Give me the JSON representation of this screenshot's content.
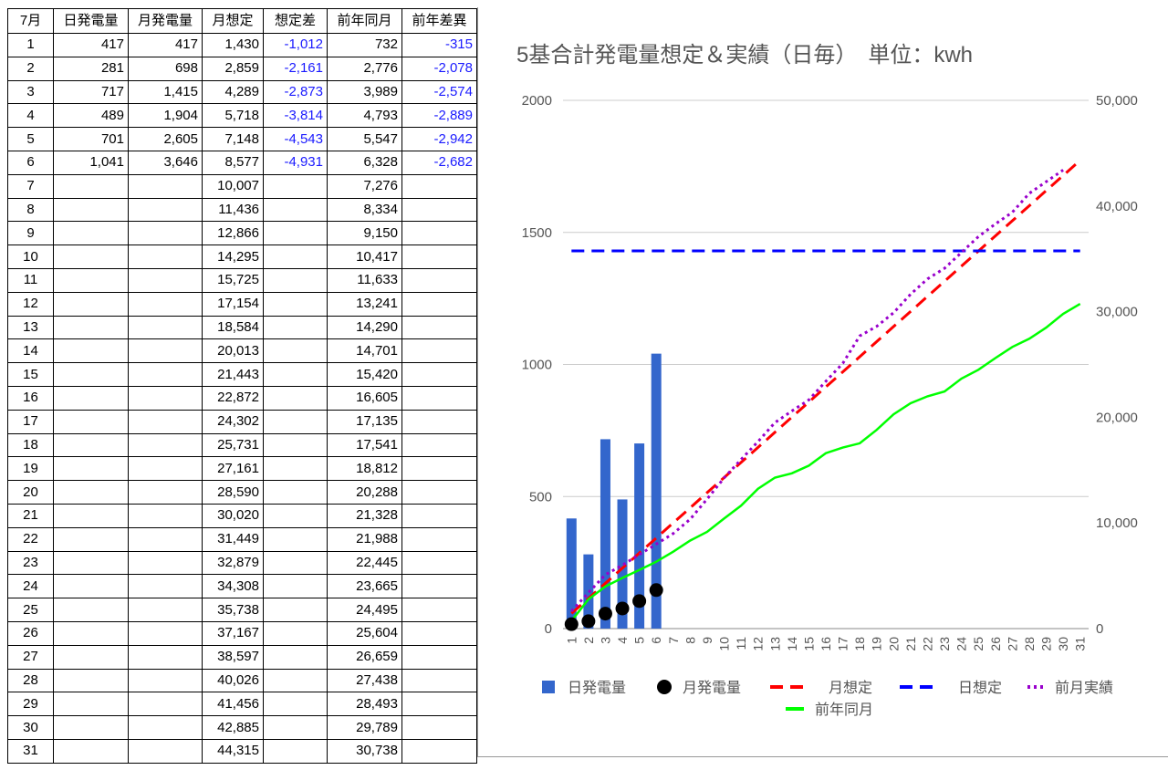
{
  "table": {
    "header": [
      "7月",
      "日発電量",
      "月発電量",
      "月想定",
      "想定差",
      "前年同月",
      "前年差異"
    ],
    "rows": [
      [
        "1",
        "417",
        "417",
        "1,430",
        "-1,012",
        "732",
        "-315"
      ],
      [
        "2",
        "281",
        "698",
        "2,859",
        "-2,161",
        "2,776",
        "-2,078"
      ],
      [
        "3",
        "717",
        "1,415",
        "4,289",
        "-2,873",
        "3,989",
        "-2,574"
      ],
      [
        "4",
        "489",
        "1,904",
        "5,718",
        "-3,814",
        "4,793",
        "-2,889"
      ],
      [
        "5",
        "701",
        "2,605",
        "7,148",
        "-4,543",
        "5,547",
        "-2,942"
      ],
      [
        "6",
        "1,041",
        "3,646",
        "8,577",
        "-4,931",
        "6,328",
        "-2,682"
      ],
      [
        "7",
        null,
        null,
        "10,007",
        null,
        "7,276",
        null
      ],
      [
        "8",
        null,
        null,
        "11,436",
        null,
        "8,334",
        null
      ],
      [
        "9",
        null,
        null,
        "12,866",
        null,
        "9,150",
        null
      ],
      [
        "10",
        null,
        null,
        "14,295",
        null,
        "10,417",
        null
      ],
      [
        "11",
        null,
        null,
        "15,725",
        null,
        "11,633",
        null
      ],
      [
        "12",
        null,
        null,
        "17,154",
        null,
        "13,241",
        null
      ],
      [
        "13",
        null,
        null,
        "18,584",
        null,
        "14,290",
        null
      ],
      [
        "14",
        null,
        null,
        "20,013",
        null,
        "14,701",
        null
      ],
      [
        "15",
        null,
        null,
        "21,443",
        null,
        "15,420",
        null
      ],
      [
        "16",
        null,
        null,
        "22,872",
        null,
        "16,605",
        null
      ],
      [
        "17",
        null,
        null,
        "24,302",
        null,
        "17,135",
        null
      ],
      [
        "18",
        null,
        null,
        "25,731",
        null,
        "17,541",
        null
      ],
      [
        "19",
        null,
        null,
        "27,161",
        null,
        "18,812",
        null
      ],
      [
        "20",
        null,
        null,
        "28,590",
        null,
        "20,288",
        null
      ],
      [
        "21",
        null,
        null,
        "30,020",
        null,
        "21,328",
        null
      ],
      [
        "22",
        null,
        null,
        "31,449",
        null,
        "21,988",
        null
      ],
      [
        "23",
        null,
        null,
        "32,879",
        null,
        "22,445",
        null
      ],
      [
        "24",
        null,
        null,
        "34,308",
        null,
        "23,665",
        null
      ],
      [
        "25",
        null,
        null,
        "35,738",
        null,
        "24,495",
        null
      ],
      [
        "26",
        null,
        null,
        "37,167",
        null,
        "25,604",
        null
      ],
      [
        "27",
        null,
        null,
        "38,597",
        null,
        "26,659",
        null
      ],
      [
        "28",
        null,
        null,
        "40,026",
        null,
        "27,438",
        null
      ],
      [
        "29",
        null,
        null,
        "41,456",
        null,
        "28,493",
        null
      ],
      [
        "30",
        null,
        null,
        "42,885",
        null,
        "29,789",
        null
      ],
      [
        "31",
        null,
        null,
        "44,315",
        null,
        "30,738",
        null
      ]
    ]
  },
  "chart_data": {
    "type": "combo",
    "title": "5基合計発電量想定＆実績（日毎）　単位：kwh",
    "categories": [
      "1",
      "2",
      "3",
      "4",
      "5",
      "6",
      "7",
      "8",
      "9",
      "10",
      "11",
      "12",
      "13",
      "14",
      "15",
      "16",
      "17",
      "18",
      "19",
      "20",
      "21",
      "22",
      "23",
      "24",
      "25",
      "26",
      "27",
      "28",
      "29",
      "30",
      "31"
    ],
    "ylim": [
      0,
      2000
    ],
    "yticks": [
      0,
      500,
      1000,
      1500,
      2000
    ],
    "y2lim": [
      0,
      50000
    ],
    "y2ticks": [
      0,
      {
        "value": 10000,
        "label": "10,000"
      },
      {
        "value": 20000,
        "label": "20,000"
      },
      {
        "value": 30000,
        "label": "30,000"
      },
      {
        "value": 40000,
        "label": "40,000"
      },
      {
        "value": 50000,
        "label": "50,000"
      }
    ],
    "grid": true,
    "series": [
      {
        "name": "日発電量",
        "type": "bar",
        "color": "#3366cc",
        "values": [
          417,
          281,
          717,
          489,
          701,
          1041,
          null,
          null,
          null,
          null,
          null,
          null,
          null,
          null,
          null,
          null,
          null,
          null,
          null,
          null,
          null,
          null,
          null,
          null,
          null,
          null,
          null,
          null,
          null,
          null,
          null
        ]
      },
      {
        "name": "月発電量",
        "type": "scatter",
        "axis": "y2",
        "color": "#000000",
        "values": [
          417,
          698,
          1415,
          1904,
          2605,
          3646,
          null,
          null,
          null,
          null,
          null,
          null,
          null,
          null,
          null,
          null,
          null,
          null,
          null,
          null,
          null,
          null,
          null,
          null,
          null,
          null,
          null,
          null,
          null,
          null,
          null
        ]
      },
      {
        "name": "月想定",
        "type": "line",
        "style": "dashed",
        "axis": "y2",
        "color": "#ff0000",
        "values": [
          1430,
          2859,
          4289,
          5718,
          7148,
          8577,
          10007,
          11436,
          12866,
          14295,
          15725,
          17154,
          18584,
          20013,
          21443,
          22872,
          24302,
          25731,
          27161,
          28590,
          30020,
          31449,
          32879,
          34308,
          35738,
          37167,
          38597,
          40026,
          41456,
          42885,
          44315
        ]
      },
      {
        "name": "日想定",
        "type": "line",
        "style": "dashed",
        "color": "#0000ff",
        "values": [
          1430,
          1430,
          1430,
          1430,
          1430,
          1430,
          1430,
          1430,
          1430,
          1430,
          1430,
          1430,
          1430,
          1430,
          1430,
          1430,
          1430,
          1430,
          1430,
          1430,
          1430,
          1430,
          1430,
          1430,
          1430,
          1430,
          1430,
          1430,
          1430,
          1430,
          1430
        ]
      },
      {
        "name": "前月実績",
        "type": "line",
        "style": "dotted",
        "axis": "y2",
        "color": "#9900cc",
        "values": [
          1650,
          3400,
          5100,
          6000,
          7000,
          8000,
          9000,
          10350,
          12260,
          14260,
          16000,
          17700,
          19500,
          20600,
          21650,
          23400,
          25100,
          27700,
          28600,
          29900,
          31650,
          33100,
          34100,
          35600,
          37100,
          38300,
          39400,
          41200,
          42300,
          43400,
          null
        ]
      },
      {
        "name": "前年同月",
        "type": "line",
        "style": "solid",
        "axis": "y2",
        "color": "#00ff00",
        "values": [
          732,
          2776,
          3989,
          4793,
          5547,
          6328,
          7276,
          8334,
          9150,
          10417,
          11633,
          13241,
          14290,
          14701,
          15420,
          16605,
          17135,
          17541,
          18812,
          20288,
          21328,
          21988,
          22445,
          23665,
          24495,
          25604,
          26659,
          27438,
          28493,
          29789,
          30738
        ]
      }
    ]
  }
}
